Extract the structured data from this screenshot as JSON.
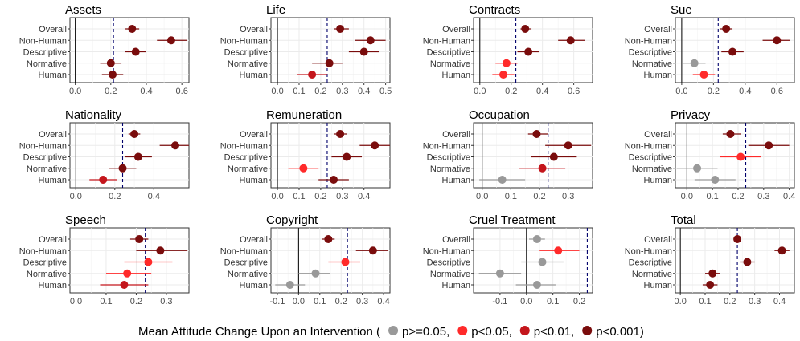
{
  "figure": {
    "legend_title": "Mean Attitude Change Upon an Intervention (",
    "legend_items": [
      {
        "label": "p>=0.05,",
        "color": "#999999"
      },
      {
        "label": "p<0.05,",
        "color": "#ff2a2a"
      },
      {
        "label": "p<0.01,",
        "color": "#c4161c"
      },
      {
        "label": "p<0.001)",
        "color": "#7a0c0c"
      }
    ]
  },
  "chart_data": [
    {
      "type": "scatter",
      "title": "Assets",
      "categories": [
        "Overall",
        "Non-Human",
        "Descriptive",
        "Normative",
        "Human"
      ],
      "xlim": [
        -0.03,
        0.64
      ],
      "xticks": [
        "0.0",
        "0.2",
        "0.4",
        "0.6"
      ],
      "xtick_values": [
        0,
        0.2,
        0.4,
        0.6
      ],
      "ref_line": 0.215,
      "points": [
        {
          "value": 0.32,
          "lo": 0.28,
          "hi": 0.36,
          "sig": 3
        },
        {
          "value": 0.54,
          "lo": 0.46,
          "hi": 0.63,
          "sig": 3
        },
        {
          "value": 0.34,
          "lo": 0.28,
          "hi": 0.4,
          "sig": 3
        },
        {
          "value": 0.2,
          "lo": 0.14,
          "hi": 0.26,
          "sig": 3
        },
        {
          "value": 0.21,
          "lo": 0.15,
          "hi": 0.27,
          "sig": 3
        }
      ]
    },
    {
      "type": "scatter",
      "title": "Life",
      "categories": [
        "Overall",
        "Non-Human",
        "Descriptive",
        "Normative",
        "Human"
      ],
      "xlim": [
        -0.03,
        0.52
      ],
      "xticks": [
        "0.0",
        "0.1",
        "0.2",
        "0.3",
        "0.4",
        "0.5"
      ],
      "xtick_values": [
        0,
        0.1,
        0.2,
        0.3,
        0.4,
        0.5
      ],
      "ref_line": 0.23,
      "points": [
        {
          "value": 0.29,
          "lo": 0.26,
          "hi": 0.33,
          "sig": 3
        },
        {
          "value": 0.43,
          "lo": 0.36,
          "hi": 0.5,
          "sig": 3
        },
        {
          "value": 0.4,
          "lo": 0.33,
          "hi": 0.47,
          "sig": 3
        },
        {
          "value": 0.24,
          "lo": 0.16,
          "hi": 0.3,
          "sig": 3
        },
        {
          "value": 0.16,
          "lo": 0.09,
          "hi": 0.23,
          "sig": 2
        }
      ]
    },
    {
      "type": "scatter",
      "title": "Contracts",
      "categories": [
        "Overall",
        "Non-Human",
        "Descriptive",
        "Normative",
        "Human"
      ],
      "xlim": [
        -0.04,
        0.72
      ],
      "xticks": [
        "0.0",
        "0.2",
        "0.4",
        "0.6"
      ],
      "xtick_values": [
        0,
        0.2,
        0.4,
        0.6
      ],
      "ref_line": 0.23,
      "points": [
        {
          "value": 0.29,
          "lo": 0.26,
          "hi": 0.33,
          "sig": 3
        },
        {
          "value": 0.58,
          "lo": 0.5,
          "hi": 0.67,
          "sig": 3
        },
        {
          "value": 0.31,
          "lo": 0.24,
          "hi": 0.38,
          "sig": 3
        },
        {
          "value": 0.17,
          "lo": 0.1,
          "hi": 0.24,
          "sig": 1
        },
        {
          "value": 0.15,
          "lo": 0.08,
          "hi": 0.22,
          "sig": 1
        }
      ]
    },
    {
      "type": "scatter",
      "title": "Sue",
      "categories": [
        "Overall",
        "Non-Human",
        "Descriptive",
        "Normative",
        "Human"
      ],
      "xlim": [
        -0.04,
        0.71
      ],
      "xticks": [
        "0.0",
        "0.2",
        "0.4",
        "0.6"
      ],
      "xtick_values": [
        0,
        0.2,
        0.4,
        0.6
      ],
      "ref_line": 0.23,
      "points": [
        {
          "value": 0.28,
          "lo": 0.24,
          "hi": 0.32,
          "sig": 3
        },
        {
          "value": 0.6,
          "lo": 0.51,
          "hi": 0.68,
          "sig": 3
        },
        {
          "value": 0.32,
          "lo": 0.25,
          "hi": 0.39,
          "sig": 3
        },
        {
          "value": 0.08,
          "lo": 0.01,
          "hi": 0.15,
          "sig": 0
        },
        {
          "value": 0.14,
          "lo": 0.07,
          "hi": 0.21,
          "sig": 1
        }
      ]
    },
    {
      "type": "scatter",
      "title": "Nationality",
      "categories": [
        "Overall",
        "Non-Human",
        "Descriptive",
        "Normative",
        "Human"
      ],
      "xlim": [
        -0.03,
        0.58
      ],
      "xticks": [
        "0.0",
        "0.2",
        "0.4"
      ],
      "xtick_values": [
        0,
        0.2,
        0.4
      ],
      "ref_line": 0.24,
      "points": [
        {
          "value": 0.3,
          "lo": 0.27,
          "hi": 0.33,
          "sig": 3
        },
        {
          "value": 0.51,
          "lo": 0.43,
          "hi": 0.58,
          "sig": 3
        },
        {
          "value": 0.32,
          "lo": 0.25,
          "hi": 0.39,
          "sig": 3
        },
        {
          "value": 0.24,
          "lo": 0.17,
          "hi": 0.31,
          "sig": 3
        },
        {
          "value": 0.14,
          "lo": 0.07,
          "hi": 0.21,
          "sig": 2
        }
      ]
    },
    {
      "type": "scatter",
      "title": "Remuneration",
      "categories": [
        "Overall",
        "Non-Human",
        "Descriptive",
        "Normative",
        "Human"
      ],
      "xlim": [
        -0.03,
        0.52
      ],
      "xticks": [
        "0.0",
        "0.1",
        "0.2",
        "0.3",
        "0.4"
      ],
      "xtick_values": [
        0,
        0.1,
        0.2,
        0.3,
        0.4
      ],
      "ref_line": 0.23,
      "points": [
        {
          "value": 0.29,
          "lo": 0.26,
          "hi": 0.32,
          "sig": 3
        },
        {
          "value": 0.45,
          "lo": 0.38,
          "hi": 0.52,
          "sig": 3
        },
        {
          "value": 0.32,
          "lo": 0.25,
          "hi": 0.39,
          "sig": 3
        },
        {
          "value": 0.12,
          "lo": 0.05,
          "hi": 0.19,
          "sig": 1
        },
        {
          "value": 0.26,
          "lo": 0.19,
          "hi": 0.33,
          "sig": 3
        }
      ]
    },
    {
      "type": "scatter",
      "title": "Occupation",
      "categories": [
        "Overall",
        "Non-Human",
        "Descriptive",
        "Normative",
        "Human"
      ],
      "xlim": [
        -0.03,
        0.385
      ],
      "xticks": [
        "0.0",
        "0.1",
        "0.2",
        "0.3"
      ],
      "xtick_values": [
        0,
        0.1,
        0.2,
        0.3
      ],
      "ref_line": 0.23,
      "points": [
        {
          "value": 0.19,
          "lo": 0.16,
          "hi": 0.23,
          "sig": 3
        },
        {
          "value": 0.3,
          "lo": 0.22,
          "hi": 0.38,
          "sig": 3
        },
        {
          "value": 0.25,
          "lo": 0.17,
          "hi": 0.33,
          "sig": 3
        },
        {
          "value": 0.21,
          "lo": 0.13,
          "hi": 0.29,
          "sig": 2
        },
        {
          "value": 0.07,
          "lo": -0.01,
          "hi": 0.15,
          "sig": 0
        }
      ]
    },
    {
      "type": "scatter",
      "title": "Privacy",
      "categories": [
        "Overall",
        "Non-Human",
        "Descriptive",
        "Normative",
        "Human"
      ],
      "xlim": [
        -0.045,
        0.42
      ],
      "xticks": [
        "0.0",
        "0.1",
        "0.2",
        "0.3",
        "0.4"
      ],
      "xtick_values": [
        0,
        0.1,
        0.2,
        0.3,
        0.4
      ],
      "ref_line": 0.23,
      "points": [
        {
          "value": 0.17,
          "lo": 0.14,
          "hi": 0.21,
          "sig": 3
        },
        {
          "value": 0.32,
          "lo": 0.24,
          "hi": 0.4,
          "sig": 3
        },
        {
          "value": 0.21,
          "lo": 0.13,
          "hi": 0.29,
          "sig": 1
        },
        {
          "value": 0.04,
          "lo": -0.04,
          "hi": 0.12,
          "sig": 0
        },
        {
          "value": 0.11,
          "lo": 0.03,
          "hi": 0.19,
          "sig": 0
        }
      ]
    },
    {
      "type": "scatter",
      "title": "Speech",
      "categories": [
        "Overall",
        "Non-Human",
        "Descriptive",
        "Normative",
        "Human"
      ],
      "xlim": [
        -0.02,
        0.375
      ],
      "xticks": [
        "0.0",
        "0.1",
        "0.2",
        "0.3"
      ],
      "xtick_values": [
        0,
        0.1,
        0.2,
        0.3
      ],
      "ref_line": 0.23,
      "points": [
        {
          "value": 0.21,
          "lo": 0.18,
          "hi": 0.24,
          "sig": 3
        },
        {
          "value": 0.28,
          "lo": 0.2,
          "hi": 0.37,
          "sig": 3
        },
        {
          "value": 0.24,
          "lo": 0.16,
          "hi": 0.32,
          "sig": 1
        },
        {
          "value": 0.17,
          "lo": 0.1,
          "hi": 0.25,
          "sig": 1
        },
        {
          "value": 0.16,
          "lo": 0.08,
          "hi": 0.24,
          "sig": 2
        }
      ]
    },
    {
      "type": "scatter",
      "title": "Copyright",
      "categories": [
        "Overall",
        "Non-Human",
        "Descriptive",
        "Normative",
        "Human"
      ],
      "xlim": [
        -0.13,
        0.43
      ],
      "xticks": [
        "-0.1",
        "0.0",
        "0.1",
        "0.2",
        "0.3",
        "0.4"
      ],
      "xtick_values": [
        -0.1,
        0,
        0.1,
        0.2,
        0.3,
        0.4
      ],
      "ref_line": 0.23,
      "points": [
        {
          "value": 0.14,
          "lo": 0.11,
          "hi": 0.17,
          "sig": 3
        },
        {
          "value": 0.35,
          "lo": 0.27,
          "hi": 0.42,
          "sig": 3
        },
        {
          "value": 0.22,
          "lo": 0.14,
          "hi": 0.29,
          "sig": 1
        },
        {
          "value": 0.08,
          "lo": 0.0,
          "hi": 0.15,
          "sig": 0
        },
        {
          "value": -0.04,
          "lo": -0.11,
          "hi": 0.03,
          "sig": 0
        }
      ]
    },
    {
      "type": "scatter",
      "title": "Cruel Treatment",
      "categories": [
        "Overall",
        "Non-Human",
        "Descriptive",
        "Normative",
        "Human"
      ],
      "xlim": [
        -0.2,
        0.25
      ],
      "xticks": [
        "-0.1",
        "0.0",
        "0.1",
        "0.2"
      ],
      "xtick_values": [
        -0.1,
        0,
        0.1,
        0.2
      ],
      "ref_line": 0.23,
      "points": [
        {
          "value": 0.04,
          "lo": 0.01,
          "hi": 0.07,
          "sig": 0
        },
        {
          "value": 0.12,
          "lo": 0.05,
          "hi": 0.2,
          "sig": 1
        },
        {
          "value": 0.06,
          "lo": -0.02,
          "hi": 0.14,
          "sig": 0
        },
        {
          "value": -0.1,
          "lo": -0.18,
          "hi": -0.02,
          "sig": 0
        },
        {
          "value": 0.04,
          "lo": -0.04,
          "hi": 0.11,
          "sig": 0
        }
      ]
    },
    {
      "type": "scatter",
      "title": "Total",
      "categories": [
        "Overall",
        "Non-Human",
        "Descriptive",
        "Normative",
        "Human"
      ],
      "xlim": [
        -0.02,
        0.46
      ],
      "xticks": [
        "0.0",
        "0.1",
        "0.2",
        "0.3",
        "0.4"
      ],
      "xtick_values": [
        0,
        0.1,
        0.2,
        0.3,
        0.4
      ],
      "ref_line": 0.23,
      "points": [
        {
          "value": 0.23,
          "lo": 0.22,
          "hi": 0.24,
          "sig": 3
        },
        {
          "value": 0.41,
          "lo": 0.38,
          "hi": 0.44,
          "sig": 3
        },
        {
          "value": 0.27,
          "lo": 0.24,
          "hi": 0.3,
          "sig": 3
        },
        {
          "value": 0.13,
          "lo": 0.1,
          "hi": 0.16,
          "sig": 3
        },
        {
          "value": 0.12,
          "lo": 0.09,
          "hi": 0.15,
          "sig": 3
        }
      ]
    }
  ]
}
